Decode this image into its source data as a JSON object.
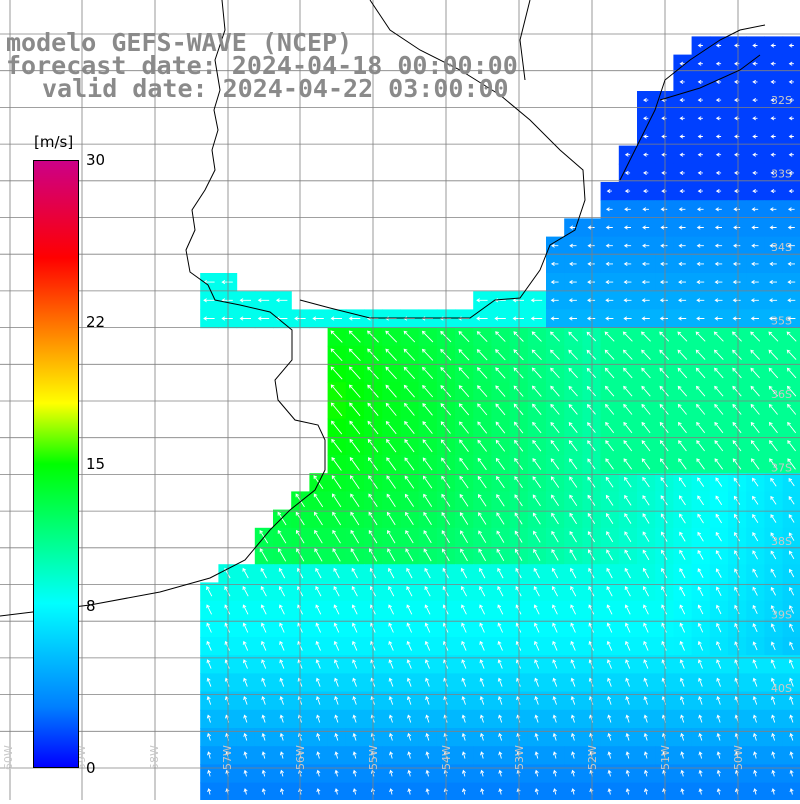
{
  "title": {
    "line1": "modelo GEFS-WAVE (NCEP)",
    "line2": "forecast date: 2024-04-18 00:00:00",
    "line3": "valid date: 2024-04-22 03:00:00"
  },
  "colorbar": {
    "unit": "[m/s]",
    "ticks": [
      {
        "label": "30",
        "value": 30
      },
      {
        "label": "22",
        "value": 22
      },
      {
        "label": "15",
        "value": 15
      },
      {
        "label": "8",
        "value": 8
      },
      {
        "label": "0",
        "value": 0
      }
    ],
    "colors": [
      "#0000ff",
      "#0080ff",
      "#00ffff",
      "#00ff00",
      "#ffff00",
      "#ff8000",
      "#ff0000",
      "#cc0088"
    ]
  },
  "lat_labels": [
    "32S",
    "33S",
    "34S",
    "35S",
    "36S",
    "37S",
    "38S",
    "39S",
    "40S"
  ],
  "lon_labels": [
    "60W",
    "59W",
    "58W",
    "57W",
    "56W",
    "55W",
    "54W",
    "53W",
    "52W",
    "51W",
    "50W"
  ],
  "map_colors": {
    "land": "#ffffff",
    "grid": "#808080",
    "coast": "#000000",
    "arrow": "#ffffff"
  }
}
